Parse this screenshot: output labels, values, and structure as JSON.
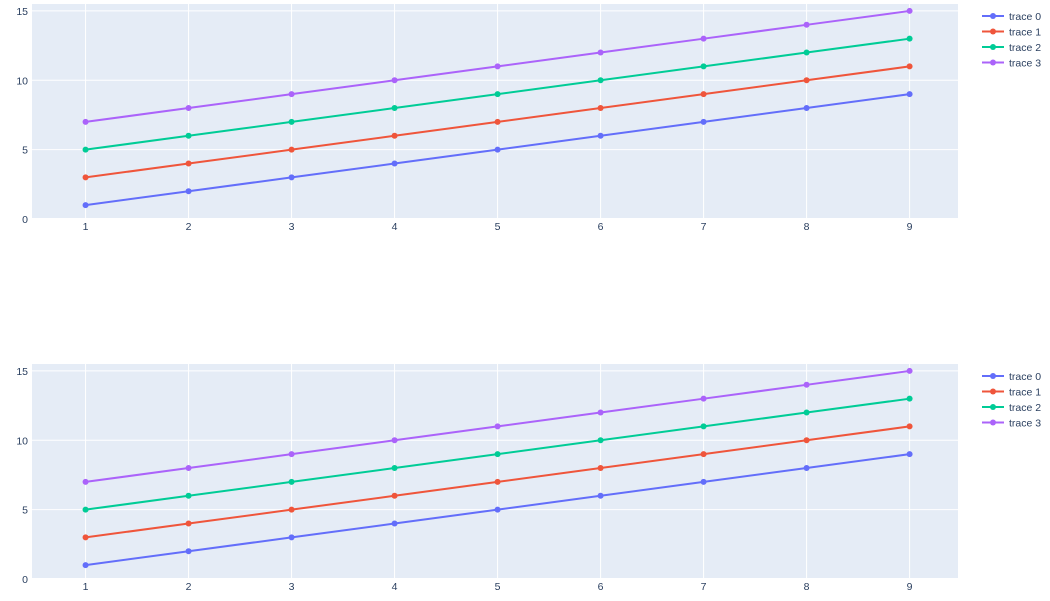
{
  "chart_data": [
    {
      "type": "line",
      "x": [
        1,
        2,
        3,
        4,
        5,
        6,
        7,
        8,
        9
      ],
      "series": [
        {
          "name": "trace 0",
          "color": "#636efa",
          "values": [
            1,
            2,
            3,
            4,
            5,
            6,
            7,
            8,
            9
          ]
        },
        {
          "name": "trace 1",
          "color": "#ef553b",
          "values": [
            3,
            4,
            5,
            6,
            7,
            8,
            9,
            10,
            11
          ]
        },
        {
          "name": "trace 2",
          "color": "#00cc96",
          "values": [
            5,
            6,
            7,
            8,
            9,
            10,
            11,
            12,
            13
          ]
        },
        {
          "name": "trace 3",
          "color": "#ab63fa",
          "values": [
            7,
            8,
            9,
            10,
            11,
            12,
            13,
            14,
            15
          ]
        }
      ],
      "xlim": [
        0.48,
        9.47
      ],
      "ylim": [
        0,
        15.5
      ],
      "x_ticks": [
        1,
        2,
        3,
        4,
        5,
        6,
        7,
        8,
        9
      ],
      "y_ticks": [
        0,
        5,
        10,
        15
      ],
      "grid": true,
      "legend": "right",
      "markers": true,
      "title": "",
      "xlabel": "",
      "ylabel": ""
    },
    {
      "type": "line",
      "x": [
        1,
        2,
        3,
        4,
        5,
        6,
        7,
        8,
        9
      ],
      "series": [
        {
          "name": "trace 0",
          "color": "#636efa",
          "values": [
            1,
            2,
            3,
            4,
            5,
            6,
            7,
            8,
            9
          ]
        },
        {
          "name": "trace 1",
          "color": "#ef553b",
          "values": [
            3,
            4,
            5,
            6,
            7,
            8,
            9,
            10,
            11
          ]
        },
        {
          "name": "trace 2",
          "color": "#00cc96",
          "values": [
            5,
            6,
            7,
            8,
            9,
            10,
            11,
            12,
            13
          ]
        },
        {
          "name": "trace 3",
          "color": "#ab63fa",
          "values": [
            7,
            8,
            9,
            10,
            11,
            12,
            13,
            14,
            15
          ]
        }
      ],
      "xlim": [
        0.48,
        9.47
      ],
      "ylim": [
        0,
        15.5
      ],
      "x_ticks": [
        1,
        2,
        3,
        4,
        5,
        6,
        7,
        8,
        9
      ],
      "y_ticks": [
        0,
        5,
        10,
        15
      ],
      "grid": true,
      "legend": "right",
      "markers": true,
      "title": "",
      "xlabel": "",
      "ylabel": ""
    }
  ]
}
